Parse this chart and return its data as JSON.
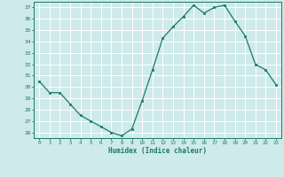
{
  "x": [
    0,
    1,
    2,
    3,
    4,
    5,
    6,
    7,
    8,
    9,
    10,
    11,
    12,
    13,
    14,
    15,
    16,
    17,
    18,
    19,
    20,
    21,
    22,
    23
  ],
  "y": [
    30.5,
    29.5,
    29.5,
    28.5,
    27.5,
    27.0,
    26.5,
    26.0,
    25.7,
    26.3,
    28.8,
    31.5,
    34.3,
    35.3,
    36.2,
    37.2,
    36.5,
    37.0,
    37.2,
    35.8,
    34.5,
    32.0,
    31.5,
    30.2
  ],
  "xlabel": "Humidex (Indice chaleur)",
  "ylabel": "",
  "ylim_min": 25.5,
  "ylim_max": 37.5,
  "xlim_min": -0.5,
  "xlim_max": 23.5,
  "yticks": [
    26,
    27,
    28,
    29,
    30,
    31,
    32,
    33,
    34,
    35,
    36,
    37
  ],
  "xticks": [
    0,
    1,
    2,
    3,
    4,
    5,
    6,
    7,
    8,
    9,
    10,
    11,
    12,
    13,
    14,
    15,
    16,
    17,
    18,
    19,
    20,
    21,
    22,
    23
  ],
  "line_color": "#1a7a6a",
  "marker_color": "#1a7a6a",
  "bg_color": "#ceeaea",
  "grid_color": "#ffffff",
  "xlabel_color": "#1a7a6a",
  "tick_color": "#1a7a6a"
}
